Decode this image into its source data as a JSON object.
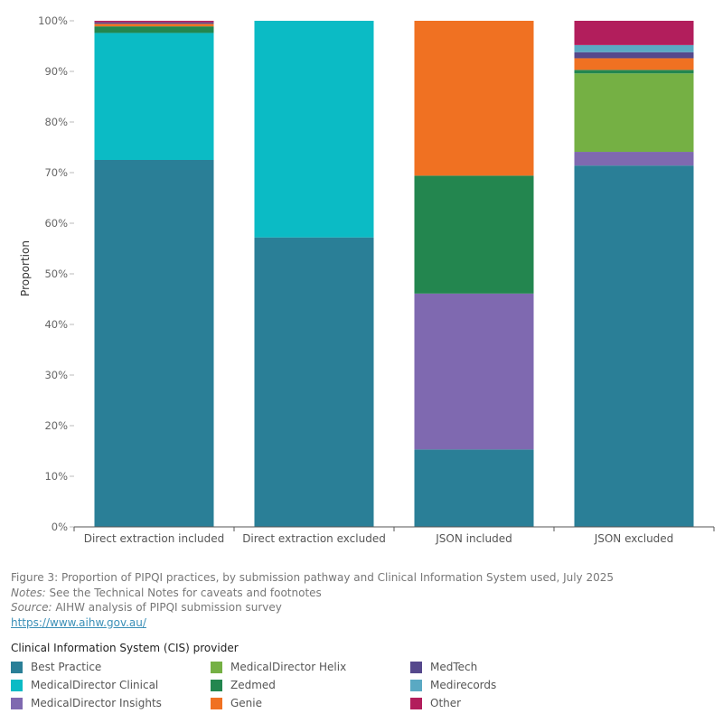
{
  "chart_data": {
    "type": "bar",
    "stacked": true,
    "ylabel": "Proportion",
    "xlabel": "",
    "ylim": [
      0,
      100
    ],
    "yticks": [
      "0%",
      "10%",
      "20%",
      "30%",
      "40%",
      "50%",
      "60%",
      "70%",
      "80%",
      "90%",
      "100%"
    ],
    "grid": false,
    "legend_placement": "bottom",
    "categories": [
      "Direct extraction included",
      "Direct extraction excluded",
      "JSON included",
      "JSON excluded"
    ],
    "series": [
      {
        "name": "Best Practice",
        "color": "#2a7f97",
        "values": [
          72.5,
          57.2,
          15.3,
          71.4
        ]
      },
      {
        "name": "MedicalDirector Insights",
        "color": "#7f69b0",
        "values": [
          0,
          0,
          30.8,
          2.7
        ]
      },
      {
        "name": "MedicalDirector Clinical",
        "color": "#0bbbc5",
        "values": [
          25.1,
          42.8,
          0,
          0
        ]
      },
      {
        "name": "MedicalDirector Helix",
        "color": "#75b044",
        "values": [
          0,
          0,
          0,
          15.5
        ]
      },
      {
        "name": "Zedmed",
        "color": "#23864f",
        "values": [
          1.3,
          0,
          23.3,
          0.7
        ]
      },
      {
        "name": "Genie",
        "color": "#f07122",
        "values": [
          0.5,
          0,
          30.6,
          2.3
        ]
      },
      {
        "name": "MedTech",
        "color": "#55488c",
        "values": [
          0.3,
          0,
          0,
          1.2
        ]
      },
      {
        "name": "Medirecords",
        "color": "#5aa9c3",
        "values": [
          0,
          0,
          0,
          1.4
        ]
      },
      {
        "name": "Other",
        "color": "#b21e5c",
        "values": [
          0.3,
          0,
          0,
          4.8
        ]
      }
    ]
  },
  "caption": {
    "line1": "Figure 3: Proportion of PIPQI practices, by submission pathway and Clinical Information System used, July 2025",
    "notes_label": "Notes:",
    "notes_text": " See the Technical Notes for caveats and footnotes",
    "source_label": "Source:",
    "source_text": " AIHW analysis of PIPQI submission survey",
    "link": "https://www.aihw.gov.au/"
  },
  "legend": {
    "title": "Clinical Information System (CIS) provider",
    "items": [
      {
        "label": "Best Practice",
        "color": "#2a7f97"
      },
      {
        "label": "MedicalDirector Clinical",
        "color": "#0bbbc5"
      },
      {
        "label": "MedicalDirector Insights",
        "color": "#7f69b0"
      },
      {
        "label": "MedicalDirector Helix",
        "color": "#75b044"
      },
      {
        "label": "Zedmed",
        "color": "#23864f"
      },
      {
        "label": "Genie",
        "color": "#f07122"
      },
      {
        "label": "MedTech",
        "color": "#55488c"
      },
      {
        "label": "Medirecords",
        "color": "#5aa9c3"
      },
      {
        "label": "Other",
        "color": "#b21e5c"
      }
    ]
  }
}
